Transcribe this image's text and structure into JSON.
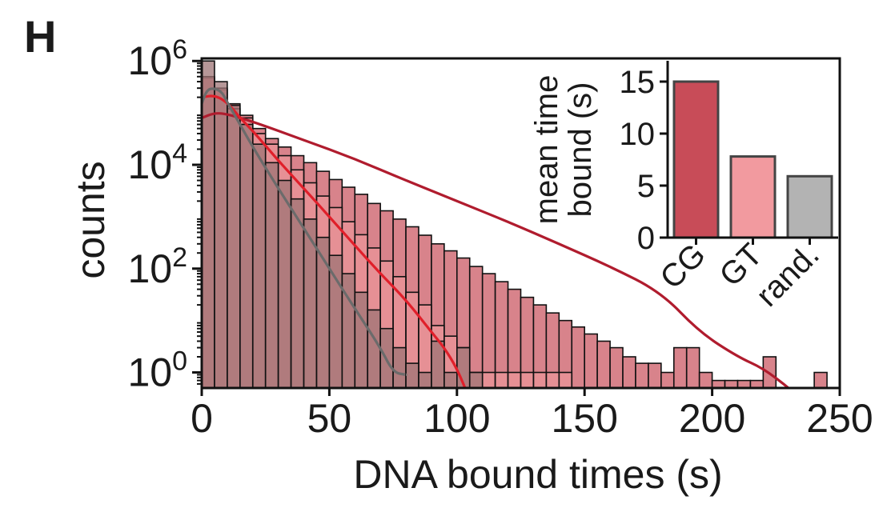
{
  "panel_label": "H",
  "colors": {
    "cg": "#c84c58",
    "gt": "#f29a9f",
    "rand": "#b3b3b3",
    "hist_cg": "#d8838b",
    "hist_rand_overlap": "#9e7476",
    "fit_cg": "#b01c2e",
    "fit_gt": "#e01f2a",
    "fit_rand": "#6b6b6b"
  },
  "chart_data": [
    {
      "type": "bar",
      "subtype": "histogram",
      "xlabel": "DNA bound times (s)",
      "ylabel": "counts",
      "xlim": [
        0,
        250
      ],
      "ylim_log10": [
        -0.3,
        6.05
      ],
      "yscale": "log",
      "xticks": [
        0,
        50,
        100,
        150,
        200,
        250
      ],
      "xtick_labels": [
        "0",
        "50",
        "100",
        "150",
        "200",
        "250"
      ],
      "yticks": [
        {
          "base": "10",
          "exp": "0",
          "value": 1
        },
        {
          "base": "10",
          "exp": "2",
          "value": 100
        },
        {
          "base": "10",
          "exp": "4",
          "value": 10000
        },
        {
          "base": "10",
          "exp": "6",
          "value": 1000000
        }
      ],
      "bin_width": 5,
      "series": [
        {
          "key": "cg",
          "bin_starts": [
            0,
            5,
            10,
            15,
            20,
            25,
            30,
            35,
            40,
            45,
            50,
            55,
            60,
            65,
            70,
            75,
            80,
            85,
            90,
            95,
            100,
            105,
            110,
            115,
            120,
            125,
            130,
            135,
            140,
            145,
            150,
            155,
            160,
            165,
            170,
            175,
            180,
            185,
            190,
            195,
            200,
            205,
            210,
            215,
            220,
            240
          ],
          "counts": [
            470000,
            280000,
            150000,
            90000,
            50000,
            32000,
            22000,
            15000,
            11000,
            7500,
            5200,
            3700,
            2700,
            1800,
            1300,
            900,
            640,
            440,
            300,
            220,
            160,
            110,
            80,
            56,
            40,
            28,
            20,
            14,
            10,
            7.5,
            5.5,
            4,
            3,
            2,
            1.5,
            1.5,
            1,
            3,
            3,
            1,
            0.7,
            0.7,
            0.7,
            0.7,
            2,
            1
          ]
        },
        {
          "key": "gt",
          "bin_starts": [
            0,
            5,
            10,
            15,
            20,
            25,
            30,
            35,
            40,
            45,
            50,
            55,
            60,
            65,
            70,
            75,
            80,
            85,
            90,
            95,
            100,
            105,
            110,
            115,
            120,
            125,
            130,
            135,
            140
          ],
          "counts": [
            500000,
            300000,
            120000,
            80000,
            40000,
            25000,
            15000,
            8000,
            4500,
            2500,
            1500,
            800,
            450,
            250,
            140,
            70,
            35,
            20,
            8,
            5,
            3,
            1,
            1,
            1,
            1,
            1,
            1,
            1,
            1
          ]
        },
        {
          "key": "rand",
          "bin_starts": [
            0,
            5,
            10,
            15,
            20,
            25,
            30,
            35,
            40,
            45,
            50,
            55,
            60,
            65,
            70,
            75,
            80,
            85,
            90,
            95,
            100,
            105
          ],
          "counts": [
            1000000,
            400000,
            140000,
            60000,
            25000,
            11000,
            5000,
            2200,
            900,
            400,
            180,
            80,
            35,
            16,
            7,
            3,
            1.5,
            1,
            4,
            1,
            3,
            1
          ]
        }
      ],
      "fit_curves": [
        {
          "key": "cg",
          "x": [
            0,
            5,
            10,
            20,
            40,
            60,
            80,
            100,
            120,
            140,
            160,
            180,
            195,
            210,
            220,
            230
          ],
          "y": [
            80000,
            100000,
            95000,
            68000,
            30000,
            13000,
            5000,
            2000,
            800,
            300,
            110,
            35,
            6,
            2,
            1.2,
            0.5
          ]
        },
        {
          "key": "gt",
          "x": [
            0,
            5,
            10,
            15,
            20,
            30,
            40,
            50,
            60,
            70,
            80,
            90,
            95,
            100,
            105,
            110
          ],
          "y": [
            200000,
            220000,
            160000,
            80000,
            45000,
            12000,
            3500,
            1000,
            280,
            80,
            25,
            6,
            3,
            1.2,
            0.3,
            0.05
          ]
        },
        {
          "key": "rand",
          "x": [
            0,
            2,
            5,
            8,
            10,
            15,
            20,
            30,
            40,
            50,
            60,
            70,
            75,
            80
          ],
          "y": [
            150000,
            280000,
            300000,
            250000,
            160000,
            60000,
            22000,
            3500,
            600,
            100,
            17,
            3,
            1,
            0.9
          ]
        }
      ]
    },
    {
      "type": "bar",
      "subtype": "inset",
      "ylabel_line1": "mean time",
      "ylabel_line2": "bound (s)",
      "ylim": [
        0,
        17
      ],
      "yticks": [
        "0",
        "5",
        "10",
        "15"
      ],
      "categories": [
        "CG",
        "GT",
        "rand."
      ],
      "values": [
        15,
        7.8,
        5.9
      ]
    }
  ]
}
